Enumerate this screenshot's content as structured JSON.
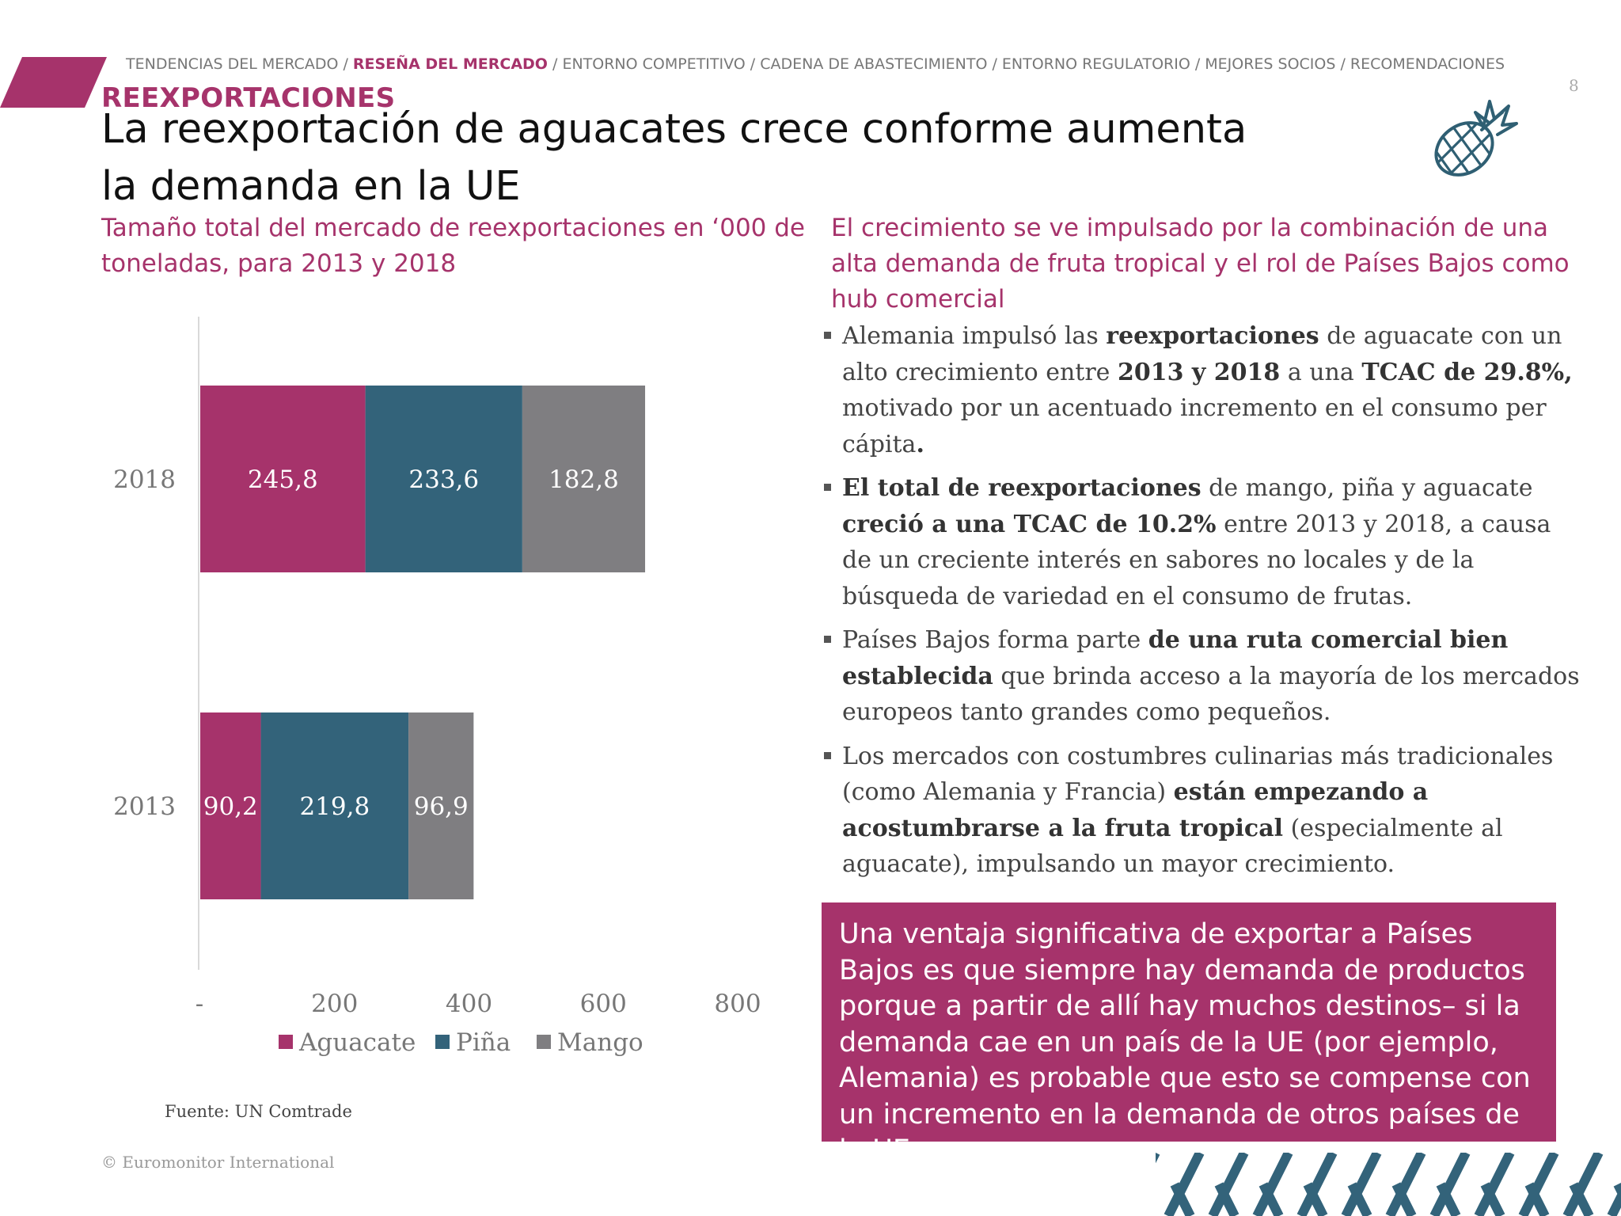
{
  "header": {
    "breadcrumb": [
      {
        "label": "TENDENCIAS DEL MERCADO",
        "active": false
      },
      {
        "label": "RESEÑA DEL MERCADO",
        "active": true
      },
      {
        "label": "ENTORNO COMPETITIVO",
        "active": false
      },
      {
        "label": "CADENA DE ABASTECIMIENTO",
        "active": false
      },
      {
        "label": "ENTORNO REGULATORIO",
        "active": false
      },
      {
        "label": "MEJORES SOCIOS",
        "active": false
      },
      {
        "label": "RECOMENDACIONES",
        "active": false
      }
    ],
    "page_number": "8",
    "section_label": "REEXPORTACIONES",
    "title": "La reexportación de aguacates crece conforme aumenta la demanda en la UE"
  },
  "colors": {
    "accent": "#a6336b",
    "teal": "#33637a",
    "gray": "#7f7e81"
  },
  "icons": {
    "header": "pineapple-icon"
  },
  "chart_subtitle": "Tamaño total del mercado de reexportaciones en ‘000 de toneladas, para 2013 y 2018",
  "chart_data": {
    "type": "bar",
    "orientation": "horizontal",
    "stacked": true,
    "categories": [
      "2018",
      "2013"
    ],
    "series": [
      {
        "name": "Aguacate",
        "values": [
          245.8,
          90.2
        ],
        "labels": [
          "245,8",
          "90,2"
        ],
        "color": "#a6336b"
      },
      {
        "name": "Piña",
        "values": [
          233.6,
          219.8
        ],
        "labels": [
          "233,6",
          "219,8"
        ],
        "color": "#33637a"
      },
      {
        "name": "Mango",
        "values": [
          182.8,
          96.9
        ],
        "labels": [
          "182,8",
          "96,9"
        ],
        "color": "#7f7e81"
      }
    ],
    "xlim": [
      0,
      800
    ],
    "xticks": [
      {
        "value": 0,
        "label": "-"
      },
      {
        "value": 200,
        "label": "200"
      },
      {
        "value": 400,
        "label": "400"
      },
      {
        "value": 600,
        "label": "600"
      },
      {
        "value": 800,
        "label": "800"
      }
    ],
    "grid": false,
    "legend": "bottom"
  },
  "source": "Fuente: UN Comtrade",
  "copyright": "© Euromonitor International",
  "right_heading": "El crecimiento se ve impulsado por la combinación de una alta demanda de fruta tropical y el rol de Países Bajos como hub comercial",
  "bullets": [
    [
      {
        "t": "Alemania impulsó las ",
        "b": false
      },
      {
        "t": "reexportaciones",
        "b": true
      },
      {
        "t": " de aguacate con un alto crecimiento entre ",
        "b": false
      },
      {
        "t": "2013 y 2018",
        "b": true
      },
      {
        "t": " a una ",
        "b": false
      },
      {
        "t": "TCAC de 29.8%,",
        "b": true
      },
      {
        "t": " motivado por un acentuado incremento en el consumo per cápita",
        "b": false
      },
      {
        "t": ".",
        "b": true
      }
    ],
    [
      {
        "t": "El total de reexportaciones",
        "b": true
      },
      {
        "t": " de mango, piña y aguacate ",
        "b": false
      },
      {
        "t": "creció a una TCAC de 10.2%",
        "b": true
      },
      {
        "t": " entre 2013 y 2018, a causa de un creciente interés en sabores no locales y de la búsqueda de variedad en el consumo de frutas.",
        "b": false
      }
    ],
    [
      {
        "t": "Países Bajos forma parte ",
        "b": false
      },
      {
        "t": "de una ruta comercial bien establecida",
        "b": true
      },
      {
        "t": " que brinda acceso a la mayoría de los mercados europeos tanto grandes como pequeños.",
        "b": false
      }
    ],
    [
      {
        "t": "Los mercados con costumbres culinarias más tradicionales (como Alemania y Francia) ",
        "b": false
      },
      {
        "t": "están empezando a acostumbrarse a la fruta tropical",
        "b": true
      },
      {
        "t": " (especialmente al aguacate), impulsando un mayor crecimiento.",
        "b": false
      }
    ]
  ],
  "callout": "Una ventaja significativa de exportar a Países Bajos es que siempre hay demanda de productos porque a partir de allí hay muchos destinos– si la demanda cae en un país de la UE (por ejemplo, Alemania) es probable que esto se compense con un incremento en la demanda de otros países de la UE."
}
